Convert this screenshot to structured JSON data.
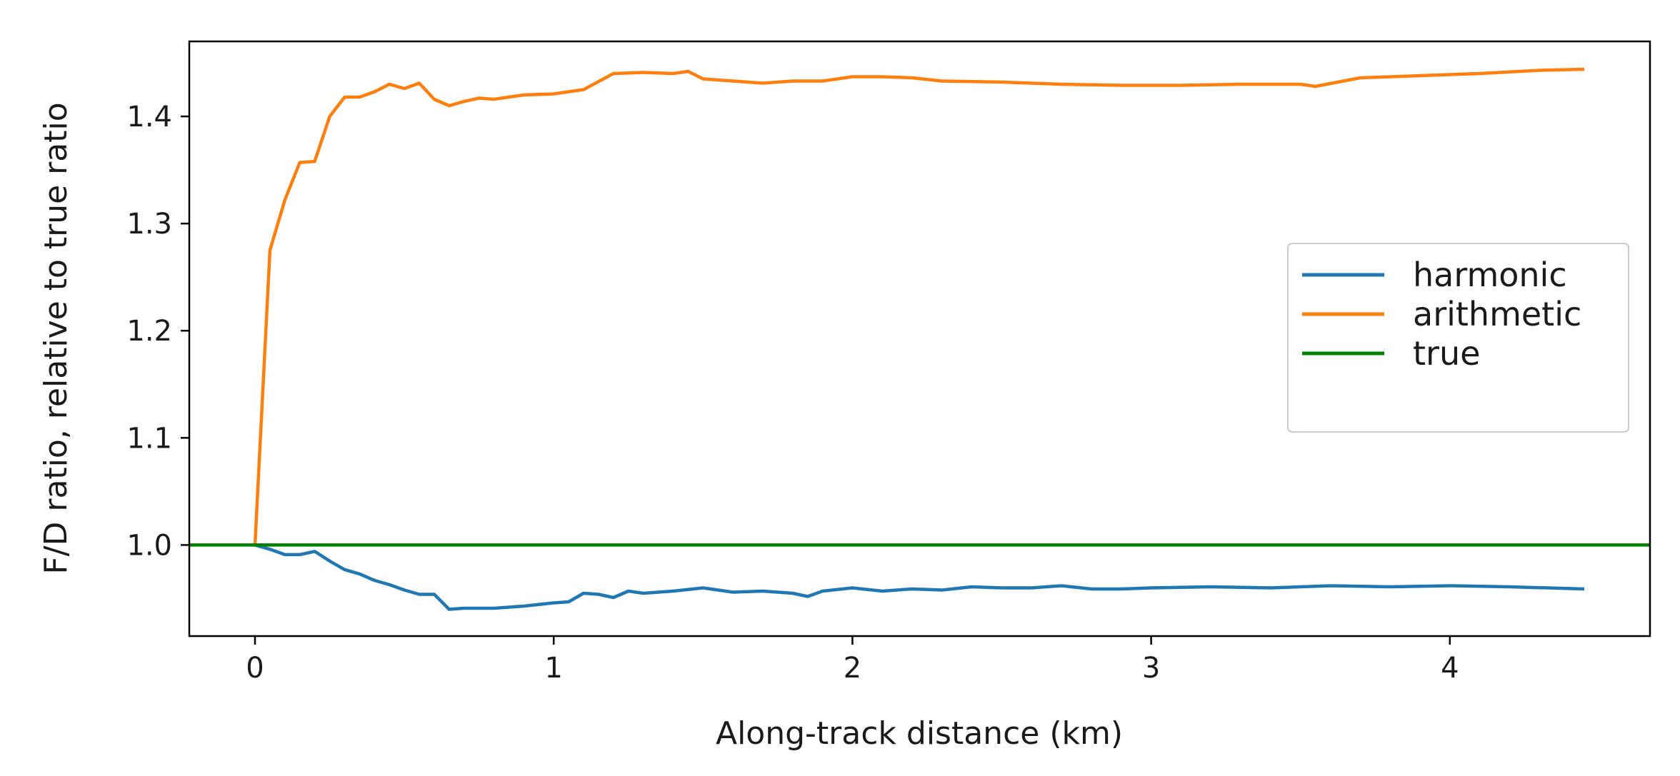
{
  "chart_data": {
    "type": "line",
    "title": "",
    "xlabel": "Along-track distance (km)",
    "ylabel": "F/D ratio, relative to true ratio",
    "xlim": [
      -0.22,
      4.67
    ],
    "ylim": [
      0.915,
      1.47
    ],
    "xticks": [
      0,
      1,
      2,
      3,
      4
    ],
    "yticks": [
      1.0,
      1.1,
      1.2,
      1.3,
      1.4
    ],
    "xtick_labels": [
      "0",
      "1",
      "2",
      "3",
      "4"
    ],
    "ytick_labels": [
      "1.0",
      "1.1",
      "1.2",
      "1.3",
      "1.4"
    ],
    "grid": false,
    "legend": {
      "position": "center-right",
      "entries": [
        "harmonic",
        "arithmetic",
        "true"
      ]
    },
    "series": [
      {
        "name": "harmonic",
        "color": "#1f77b4",
        "x": [
          0,
          0.05,
          0.1,
          0.15,
          0.2,
          0.25,
          0.3,
          0.35,
          0.4,
          0.45,
          0.5,
          0.55,
          0.6,
          0.65,
          0.7,
          0.8,
          0.9,
          1.0,
          1.05,
          1.1,
          1.15,
          1.2,
          1.25,
          1.3,
          1.4,
          1.5,
          1.6,
          1.7,
          1.8,
          1.85,
          1.9,
          2.0,
          2.1,
          2.2,
          2.3,
          2.4,
          2.5,
          2.6,
          2.7,
          2.8,
          2.9,
          3.0,
          3.2,
          3.4,
          3.6,
          3.8,
          4.0,
          4.2,
          4.45
        ],
        "y": [
          1.0,
          0.996,
          0.991,
          0.991,
          0.994,
          0.985,
          0.977,
          0.973,
          0.967,
          0.963,
          0.958,
          0.954,
          0.954,
          0.94,
          0.941,
          0.941,
          0.943,
          0.946,
          0.947,
          0.955,
          0.954,
          0.951,
          0.957,
          0.955,
          0.957,
          0.96,
          0.956,
          0.957,
          0.955,
          0.952,
          0.957,
          0.96,
          0.957,
          0.959,
          0.958,
          0.961,
          0.96,
          0.96,
          0.962,
          0.959,
          0.959,
          0.96,
          0.961,
          0.96,
          0.962,
          0.961,
          0.962,
          0.961,
          0.959
        ]
      },
      {
        "name": "arithmetic",
        "color": "#ff7f0e",
        "x": [
          0,
          0.05,
          0.1,
          0.15,
          0.2,
          0.25,
          0.3,
          0.35,
          0.4,
          0.45,
          0.5,
          0.55,
          0.6,
          0.65,
          0.7,
          0.75,
          0.8,
          0.9,
          1.0,
          1.1,
          1.2,
          1.3,
          1.4,
          1.45,
          1.5,
          1.6,
          1.7,
          1.8,
          1.9,
          2.0,
          2.1,
          2.2,
          2.3,
          2.5,
          2.7,
          2.9,
          3.1,
          3.3,
          3.5,
          3.55,
          3.7,
          3.9,
          4.1,
          4.3,
          4.45
        ],
        "y": [
          1.0,
          1.275,
          1.322,
          1.357,
          1.358,
          1.4,
          1.418,
          1.418,
          1.423,
          1.43,
          1.426,
          1.431,
          1.416,
          1.41,
          1.414,
          1.417,
          1.416,
          1.42,
          1.421,
          1.425,
          1.44,
          1.441,
          1.44,
          1.442,
          1.435,
          1.433,
          1.431,
          1.433,
          1.433,
          1.437,
          1.437,
          1.436,
          1.433,
          1.432,
          1.43,
          1.429,
          1.429,
          1.43,
          1.43,
          1.428,
          1.436,
          1.438,
          1.44,
          1.443,
          1.444
        ]
      },
      {
        "name": "true",
        "color": "#008000",
        "x": [
          -0.22,
          4.67
        ],
        "y": [
          1.0,
          1.0
        ]
      }
    ]
  }
}
